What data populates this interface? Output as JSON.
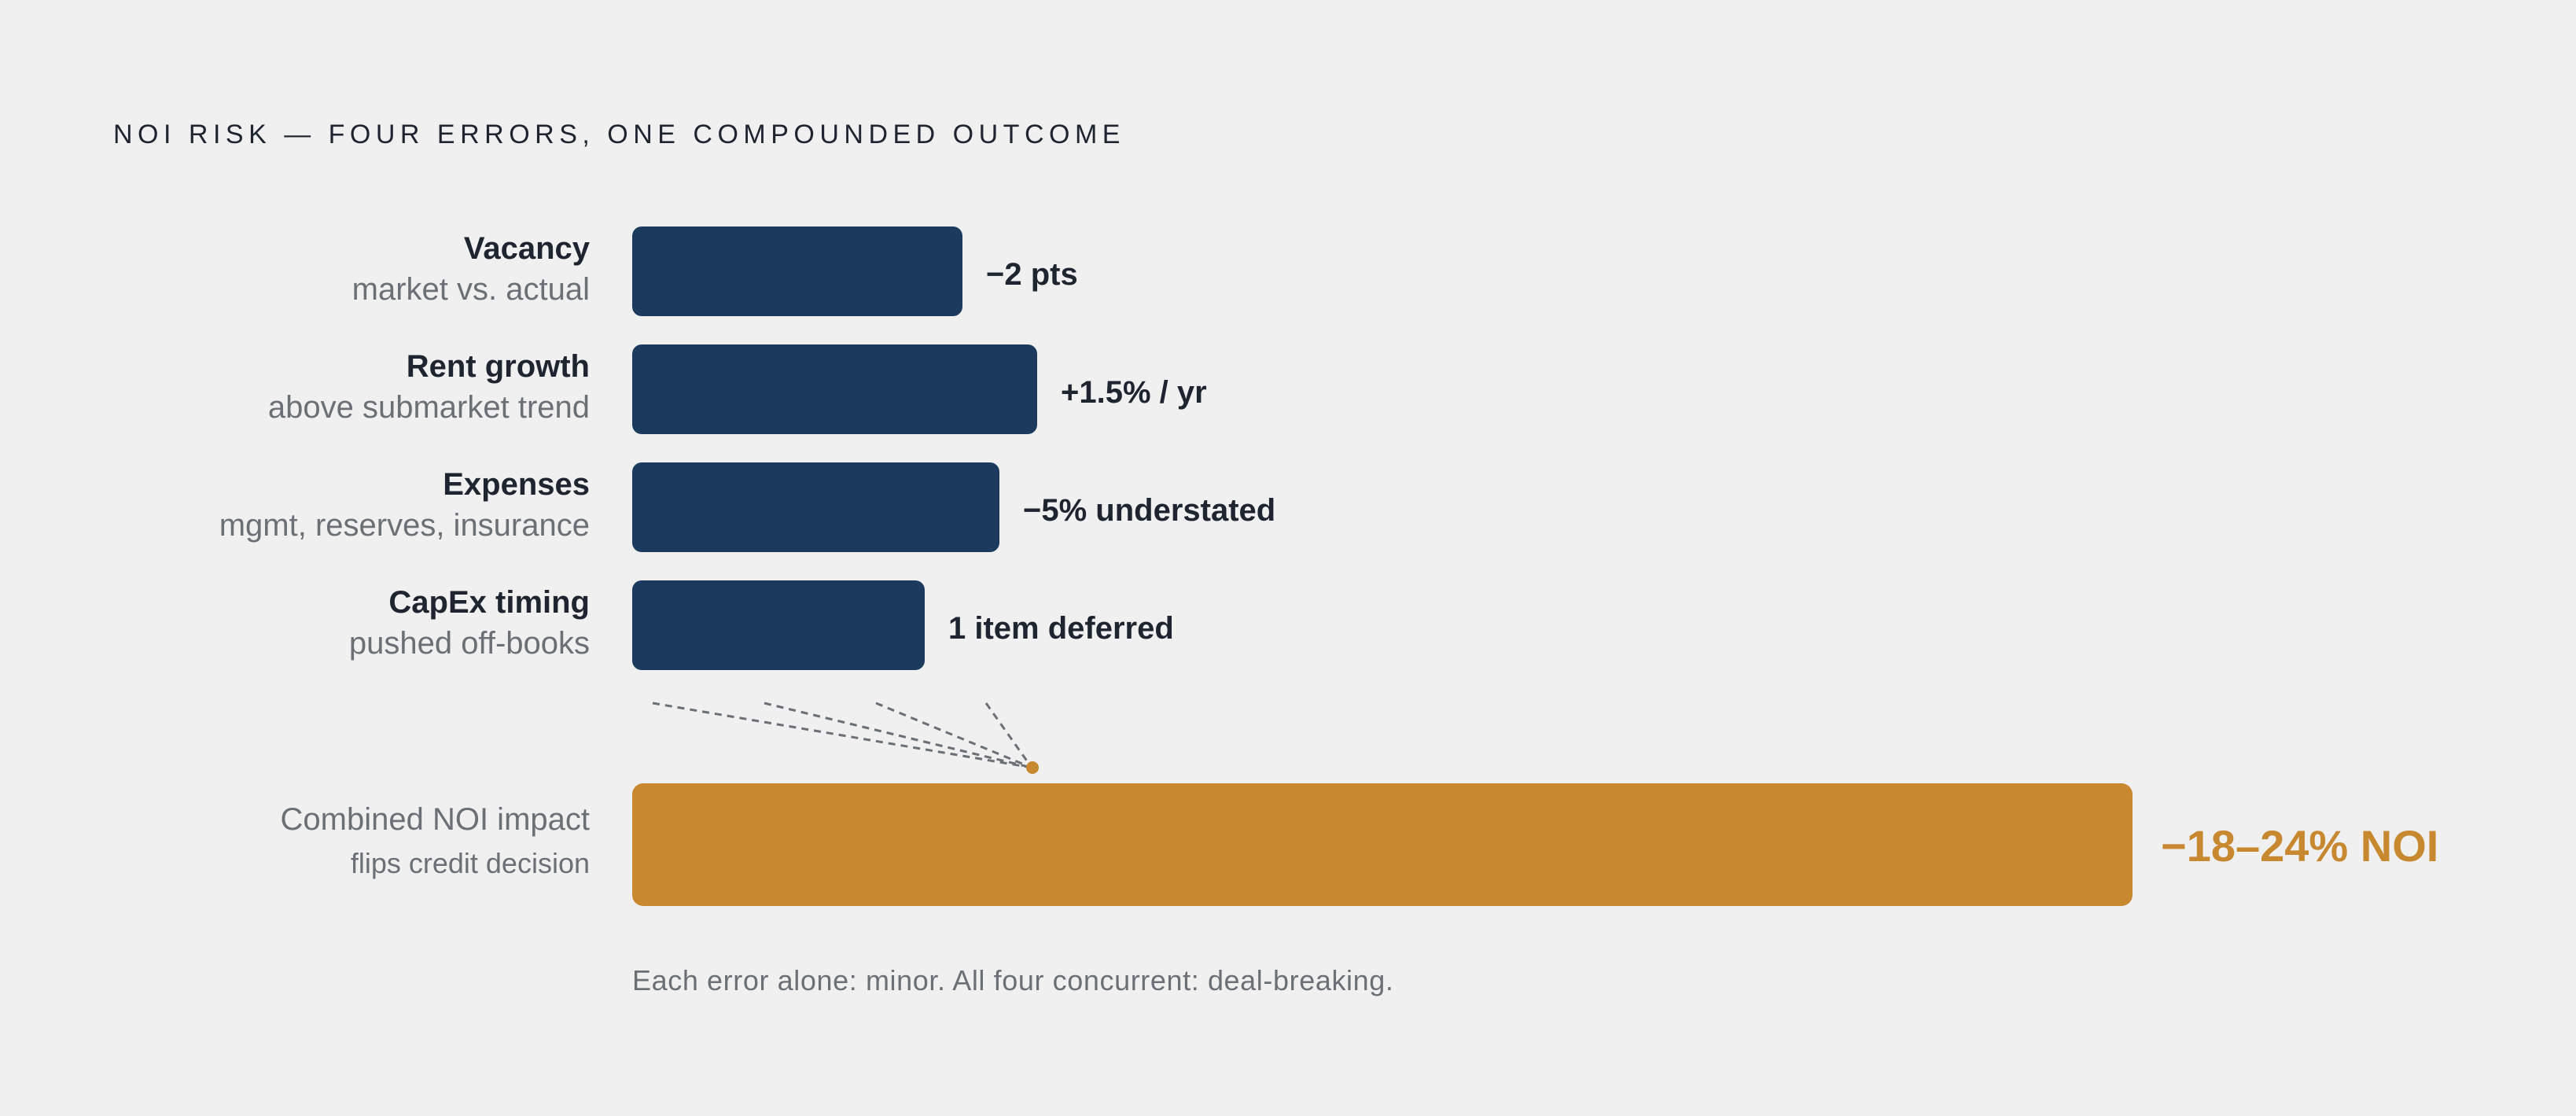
{
  "title": "NOI RISK — FOUR ERRORS, ONE COMPOUNDED OUTCOME",
  "chart_data": {
    "type": "bar",
    "orientation": "horizontal",
    "rows": [
      {
        "name": "Vacancy",
        "sub": "market vs. actual",
        "value_label": "−2 pts",
        "relative_magnitude": 0.22
      },
      {
        "name": "Rent growth",
        "sub": "above submarket trend",
        "value_label": "+1.5% / yr",
        "relative_magnitude": 0.27
      },
      {
        "name": "Expenses",
        "sub": "mgmt, reserves, insurance",
        "value_label": "−5% understated",
        "relative_magnitude": 0.245
      },
      {
        "name": "CapEx timing",
        "sub": "pushed off-books",
        "value_label": "1 item deferred",
        "relative_magnitude": 0.195
      }
    ],
    "combined": {
      "name": "Combined NOI impact",
      "sub": "flips credit decision",
      "value_label": "−18–24% NOI",
      "relative_magnitude": 1.0
    },
    "colors": {
      "error_bar": "#1c3a5e",
      "combined_bar": "#c78830",
      "connector": "#6b6f76"
    }
  },
  "footnote": "Each error alone: minor. All four concurrent: deal-breaking."
}
